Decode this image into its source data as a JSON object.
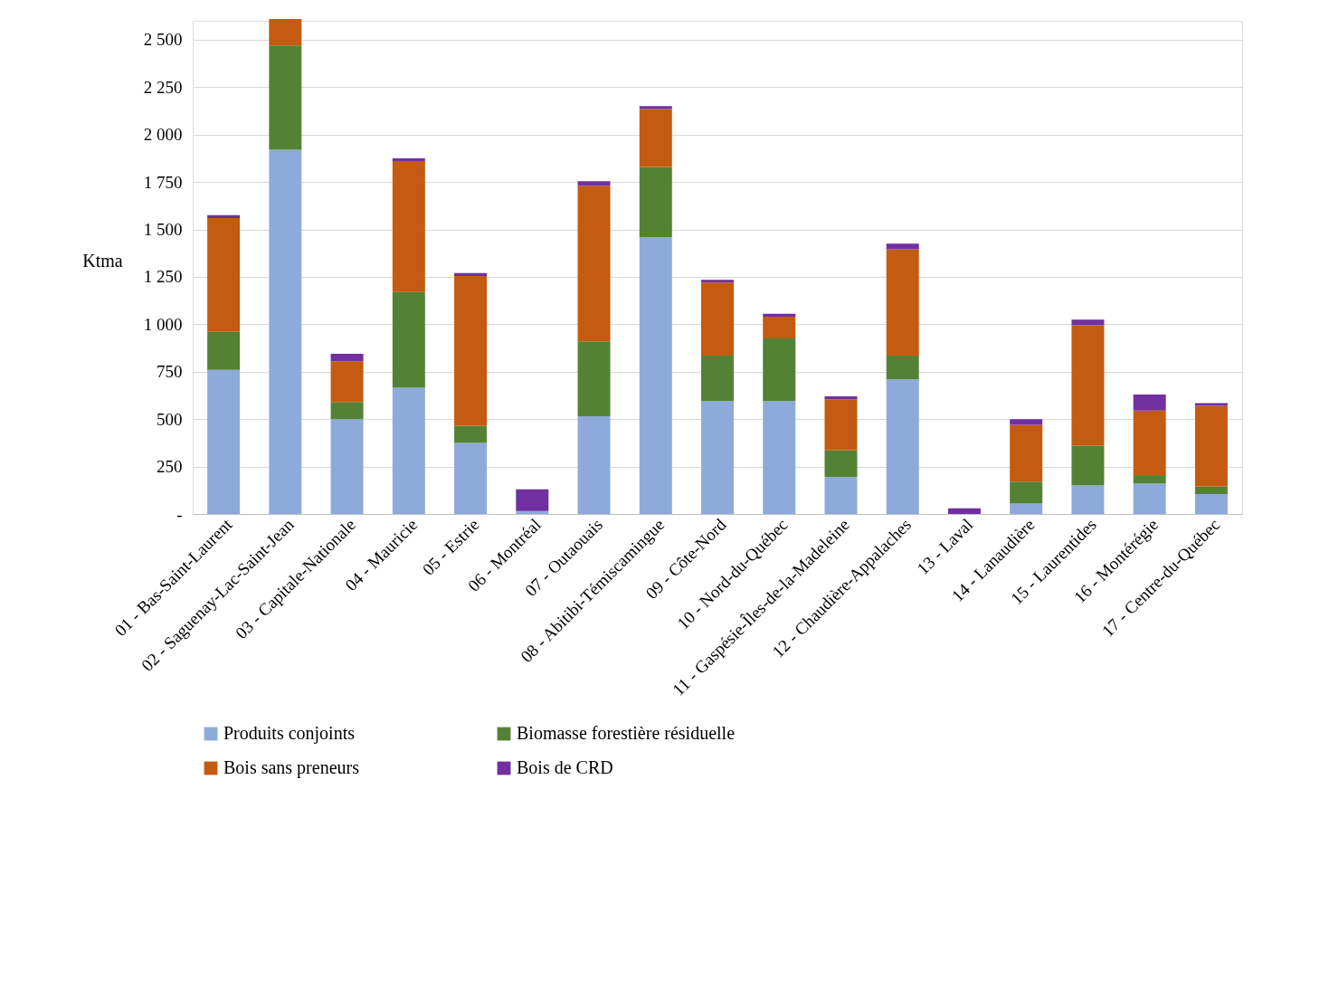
{
  "chart_data": {
    "type": "bar",
    "stacked": true,
    "ylabel": "Ktma",
    "ylim": [
      0,
      2600
    ],
    "yticks": [
      {
        "value": 0,
        "label": "-"
      },
      250,
      500,
      750,
      {
        "value": 1000,
        "label": "1 000"
      },
      {
        "value": 1250,
        "label": "1 250"
      },
      {
        "value": 1500,
        "label": "1 500"
      },
      {
        "value": 1750,
        "label": "1 750"
      },
      {
        "value": 2000,
        "label": "2 000"
      },
      {
        "value": 2250,
        "label": "2 250"
      },
      {
        "value": 2500,
        "label": "2 500"
      }
    ],
    "grid": "y",
    "legend": "bottom",
    "categories": [
      "01 - Bas-Saint-Laurent",
      "02 - Saguenay-Lac-Saint-Jean",
      "03 - Capitale-Nationale",
      "04 - Mauricie",
      "05 - Estrie",
      "06 - Montréal",
      "07 - Outaouais",
      "08 - Abitibi-Témiscamingue",
      "09 - Côte-Nord",
      "10 - Nord-du-Québec",
      "11 - Gaspésie-Îles-de-la-Madeleine",
      "12 - Chaudière-Appalaches",
      "13 - Laval",
      "14 - Lanaudière",
      "15 - Laurentides",
      "16 - Montérégie",
      "17 - Centre-du-Québec"
    ],
    "series": [
      {
        "name": "Produits conjoints",
        "color": "#8eaadb",
        "values": [
          760,
          1920,
          500,
          665,
          375,
          15,
          515,
          1460,
          595,
          595,
          195,
          710,
          0,
          55,
          150,
          160,
          105
        ]
      },
      {
        "name": "Biomasse forestière résiduelle",
        "color": "#548235",
        "values": [
          200,
          550,
          90,
          505,
          90,
          0,
          395,
          370,
          240,
          330,
          140,
          125,
          0,
          115,
          210,
          40,
          40
        ]
      },
      {
        "name": "Bois sans preneurs",
        "color": "#c55a11",
        "values": [
          600,
          140,
          215,
          690,
          790,
          0,
          820,
          305,
          385,
          115,
          270,
          560,
          0,
          300,
          635,
          345,
          425
        ]
      },
      {
        "name": "Bois de CRD",
        "color": "#7030a0",
        "values": [
          15,
          0,
          40,
          15,
          15,
          115,
          25,
          15,
          15,
          15,
          15,
          30,
          30,
          30,
          30,
          85,
          15
        ]
      }
    ]
  }
}
